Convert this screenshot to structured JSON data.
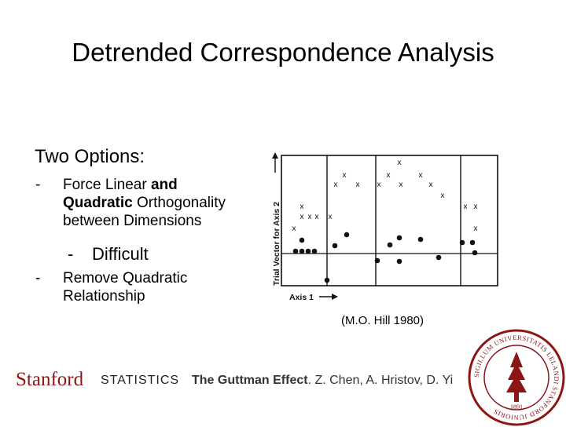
{
  "slide": {
    "title": "Detrended Correspondence Analysis",
    "subhead": "Two Options:",
    "bullet1": {
      "dash": "-",
      "line1_pre": "Force Linear ",
      "line1_bold": "and",
      "line2_bold": "Quadratic",
      "line2_post": " Orthogonality",
      "line3": "between Dimensions"
    },
    "sub_bullet": {
      "dash": "-",
      "text": "Difficult"
    },
    "bullet2": {
      "dash": "-",
      "line1": "Remove Quadratic",
      "line2": "Relationship"
    },
    "caption": "(M.O. Hill 1980)"
  },
  "figure": {
    "y_axis_label": "Trial Vector for Axis 2",
    "x_axis_label": "Axis 1",
    "x_marker": "x"
  },
  "footer": {
    "logo": "Stanford",
    "department": "STATISTICS",
    "citation_bold": "The Guttman Effect",
    "citation_rest": ". Z. Chen, A. Hristov, D. Yi"
  },
  "seal": {
    "text": "SIGILLUM UNIVERSITATIS LELANDI STANFORD JUNIORIS",
    "year": "1891",
    "color": "#8c1515"
  }
}
